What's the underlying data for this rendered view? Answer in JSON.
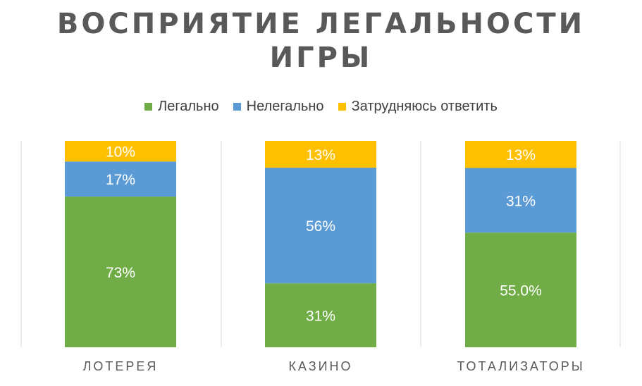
{
  "chart_data": {
    "type": "bar",
    "stacked": true,
    "percent": true,
    "title_lines": [
      "ВОСПРИЯТИЕ ЛЕГАЛЬНОСТИ",
      "ИГРЫ"
    ],
    "categories": [
      "ЛОТЕРЕЯ",
      "КАЗИНО",
      "ТОТАЛИЗАТОРЫ"
    ],
    "series": [
      {
        "name": "Легально",
        "color": "#70ad47",
        "values": [
          73,
          31,
          55
        ],
        "labels": [
          "73%",
          "31%",
          "55.0%"
        ]
      },
      {
        "name": "Нелегально",
        "color": "#5b9bd5",
        "values": [
          17,
          56,
          31
        ],
        "labels": [
          "17%",
          "56%",
          "31%"
        ]
      },
      {
        "name": "Затрудняюсь ответить",
        "color": "#ffc000",
        "values": [
          10,
          13,
          13
        ],
        "labels": [
          "10%",
          "13%",
          "13%"
        ]
      }
    ],
    "ylim": [
      0,
      100
    ],
    "legend_position": "top",
    "grid": false
  }
}
